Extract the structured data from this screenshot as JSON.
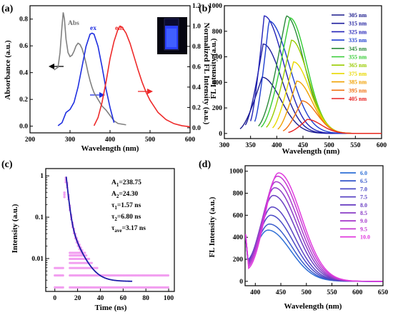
{
  "colors": {
    "axis": "#000000",
    "abs": "#808080",
    "ex": "#1f2fe0",
    "em": "#ee2a2a",
    "black": "#000000",
    "decay": "#f29ef0",
    "fit": "#1c1ca8"
  },
  "chart_data": [
    {
      "panel_label": "(a)",
      "type": "line",
      "xlabel": "Wavelength (nm)",
      "ylabel": "Absorbance (a.u.)",
      "y2label": "Normalized FL Intensity (a.u.)",
      "xlim": [
        200,
        600
      ],
      "ylim": [
        -0.05,
        0.9
      ],
      "y2lim": [
        -0.05,
        1.2
      ],
      "xticks": [
        200,
        300,
        400,
        500,
        600
      ],
      "yticks": [
        0.0,
        0.2,
        0.4,
        0.6,
        0.8
      ],
      "y2ticks": [
        0.0,
        0.2,
        0.4,
        0.6,
        0.8,
        1.0,
        1.2
      ],
      "inset": "cuvette photo under UV light (blue emission)",
      "series": [
        {
          "name": "Abs",
          "axis": "left",
          "color": "#808080",
          "x": [
            260,
            270,
            275,
            280,
            283,
            286,
            290,
            295,
            300,
            305,
            310,
            315,
            320,
            325,
            330,
            335,
            340,
            345,
            350,
            355,
            360,
            370,
            380,
            390,
            400,
            410,
            420,
            440
          ],
          "y": [
            0.42,
            0.44,
            0.55,
            0.75,
            0.85,
            0.8,
            0.65,
            0.55,
            0.52,
            0.53,
            0.56,
            0.6,
            0.62,
            0.61,
            0.58,
            0.53,
            0.47,
            0.4,
            0.34,
            0.29,
            0.25,
            0.2,
            0.15,
            0.12,
            0.08,
            0.04,
            0.02,
            0.01
          ]
        },
        {
          "name": "ex",
          "axis": "right",
          "color": "#1f2fe0",
          "x": [
            270,
            280,
            290,
            300,
            310,
            320,
            330,
            340,
            350,
            355,
            360,
            370,
            380,
            390,
            400,
            410
          ],
          "y": [
            0.02,
            0.05,
            0.15,
            0.18,
            0.25,
            0.4,
            0.6,
            0.8,
            0.92,
            0.93,
            0.92,
            0.8,
            0.6,
            0.38,
            0.2,
            0.05
          ]
        },
        {
          "name": "em",
          "axis": "right",
          "color": "#ee2a2a",
          "x": [
            360,
            370,
            380,
            390,
            400,
            410,
            420,
            425,
            430,
            440,
            450,
            460,
            470,
            480,
            490,
            500,
            520,
            540,
            560,
            580,
            600
          ],
          "y": [
            0.02,
            0.1,
            0.25,
            0.45,
            0.68,
            0.85,
            0.97,
            1.0,
            0.99,
            0.93,
            0.83,
            0.7,
            0.57,
            0.45,
            0.35,
            0.27,
            0.15,
            0.08,
            0.04,
            0.02,
            0.01
          ]
        }
      ],
      "labels": {
        "abs": "Abs",
        "ex": "ex",
        "em": "em"
      }
    },
    {
      "panel_label": "(b)",
      "type": "line",
      "xlabel": "Wavelength (nm)",
      "ylabel": "FL Intensity (a.u.)",
      "xlim": [
        300,
        600
      ],
      "ylim": [
        -40,
        1000
      ],
      "xticks": [
        300,
        350,
        400,
        450,
        500,
        550,
        600
      ],
      "yticks": [
        0,
        200,
        400,
        600,
        800,
        1000
      ],
      "legend_position": "top-right",
      "series": [
        {
          "name": "305 nm",
          "color": "#1a1a8c",
          "start": 330,
          "peak_x": 372,
          "peak_y": 440,
          "width": 50
        },
        {
          "name": "315 nm",
          "color": "#1e1e9e",
          "start": 340,
          "peak_x": 374,
          "peak_y": 700,
          "width": 50
        },
        {
          "name": "325 nm",
          "color": "#2222b8",
          "start": 350,
          "peak_x": 376,
          "peak_y": 920,
          "width": 52
        },
        {
          "name": "335 nm",
          "color": "#1f3fd0",
          "start": 358,
          "peak_x": 385,
          "peak_y": 880,
          "width": 55
        },
        {
          "name": "345 nm",
          "color": "#2a8a3a",
          "start": 365,
          "peak_x": 418,
          "peak_y": 920,
          "width": 48
        },
        {
          "name": "355 nm",
          "color": "#33cc33",
          "start": 370,
          "peak_x": 425,
          "peak_y": 905,
          "width": 45
        },
        {
          "name": "365 nm",
          "color": "#99cc00",
          "start": 380,
          "peak_x": 428,
          "peak_y": 730,
          "width": 45
        },
        {
          "name": "375 nm",
          "color": "#e8d800",
          "start": 392,
          "peak_x": 432,
          "peak_y": 560,
          "width": 44
        },
        {
          "name": "385 nm",
          "color": "#f0a000",
          "start": 402,
          "peak_x": 438,
          "peak_y": 410,
          "width": 42
        },
        {
          "name": "395 nm",
          "color": "#f07010",
          "start": 412,
          "peak_x": 448,
          "peak_y": 255,
          "width": 40
        },
        {
          "name": "405 nm",
          "color": "#e82020",
          "start": 422,
          "peak_x": 458,
          "peak_y": 110,
          "width": 38
        }
      ]
    },
    {
      "panel_label": "(c)",
      "type": "scatter",
      "xlabel": "Time (ns)",
      "ylabel": "Intensity (a.u.)",
      "xlim": [
        -8,
        105
      ],
      "ylim_log": [
        0.0016,
        1.5
      ],
      "yscale": "log",
      "xticks": [
        0,
        20,
        40,
        60,
        80,
        100
      ],
      "yticks": [
        0.01,
        0.1,
        1
      ],
      "ytick_labels": [
        "0.01",
        "0.1",
        "1"
      ],
      "series": [
        {
          "name": "decay",
          "color": "#f29ef0",
          "marker": "circle"
        },
        {
          "name": "fit",
          "color": "#1c1ca8",
          "x_range": [
            10,
            68
          ],
          "A1": 238.75,
          "A2": 24.3,
          "tau1": 1.57,
          "tau2": 6.8
        }
      ],
      "annotations": [
        "A",
        "1",
        "=238.75",
        "A",
        "2",
        "=24.30",
        "τ",
        "1",
        "=1.57 ns",
        "τ",
        "2",
        "=6.80 ns",
        "τ",
        "ave",
        "=3.17 ns"
      ],
      "annotation_lines": [
        {
          "sym": "A",
          "sub": "1",
          "rest": "=238.75"
        },
        {
          "sym": "A",
          "sub": "2",
          "rest": "=24.30"
        },
        {
          "sym": "τ",
          "sub": "1",
          "rest": "=1.57 ns"
        },
        {
          "sym": "τ",
          "sub": "2",
          "rest": "=6.80 ns"
        },
        {
          "sym": "τ",
          "sub": "ave",
          "rest": "=3.17 ns"
        }
      ]
    },
    {
      "panel_label": "(d)",
      "type": "line",
      "xlabel": "Wavelength (nm)",
      "ylabel": "FL Intensity (a.u.)",
      "xlim": [
        380,
        650
      ],
      "ylim": [
        -40,
        1050
      ],
      "xticks": [
        400,
        450,
        500,
        550,
        600,
        650
      ],
      "yticks": [
        0,
        200,
        400,
        600,
        800,
        1000
      ],
      "legend_position": "top-right",
      "series": [
        {
          "name": "6.0",
          "color": "#2e6fd6",
          "peak_y": 465
        },
        {
          "name": "6.5",
          "color": "#3a5ccc",
          "peak_y": 520
        },
        {
          "name": "7.0",
          "color": "#4a4ac6",
          "peak_y": 600
        },
        {
          "name": "7.5",
          "color": "#5a44c4",
          "peak_y": 675
        },
        {
          "name": "8.0",
          "color": "#6a3fc2",
          "peak_y": 780
        },
        {
          "name": "8.5",
          "color": "#8a3ec6",
          "peak_y": 850
        },
        {
          "name": "9.0",
          "color": "#a83ccc",
          "peak_y": 905
        },
        {
          "name": "9.5",
          "color": "#c43ad2",
          "peak_y": 955
        },
        {
          "name": "10.0",
          "color": "#e03ade",
          "peak_y": 985
        }
      ]
    }
  ]
}
